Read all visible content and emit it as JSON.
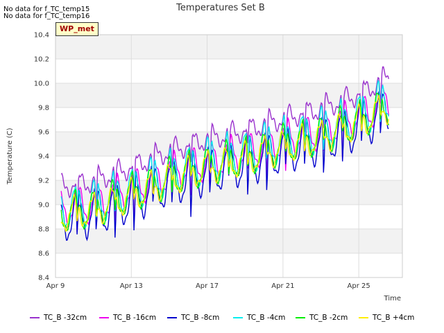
{
  "notices": [
    "No data for f_TC_temp15",
    "No data for f_TC_temp16"
  ],
  "badge": "WP_met",
  "chart_data": {
    "type": "line",
    "title": "Temperatures Set B",
    "xlabel": "Time",
    "ylabel": "Temperature (C)",
    "ylim": [
      8.4,
      10.4
    ],
    "yticks": [
      "8.4",
      "8.6",
      "8.8",
      "9.0",
      "9.2",
      "9.4",
      "9.6",
      "9.8",
      "10.0",
      "10.2",
      "10.4"
    ],
    "xlim": [
      0,
      18.3
    ],
    "xticks": [
      {
        "label": "Apr 9",
        "day": 0
      },
      {
        "label": "Apr 13",
        "day": 4
      },
      {
        "label": "Apr 17",
        "day": 8
      },
      {
        "label": "Apr 21",
        "day": 12
      },
      {
        "label": "Apr 25",
        "day": 16
      }
    ],
    "grid": true,
    "legend_position": "bottom",
    "series": [
      {
        "name": "TC_B -32cm",
        "color": "#9a32cd",
        "offset": 0.2,
        "amp": 0.08,
        "dips": 0.35
      },
      {
        "name": "TC_B -16cm",
        "color": "#ee00ee",
        "offset": 0.02,
        "amp": 0.15,
        "dips": 0.45
      },
      {
        "name": "TC_B -8cm",
        "color": "#0000cd",
        "offset": -0.05,
        "amp": 0.2,
        "dips": 0.55
      },
      {
        "name": "TC_B -4cm",
        "color": "#00eeee",
        "offset": 0.03,
        "amp": 0.18,
        "dips": 0.35
      },
      {
        "name": "TC_B -2cm",
        "color": "#00ee00",
        "offset": -0.02,
        "amp": 0.15,
        "dips": 0.25
      },
      {
        "name": "TC_B +4cm",
        "color": "#ffee00",
        "offset": -0.04,
        "amp": 0.12,
        "dips": 0.15
      }
    ],
    "trend": [
      {
        "day": 0,
        "value": 8.95
      },
      {
        "day": 2,
        "value": 9.0
      },
      {
        "day": 4,
        "value": 9.12
      },
      {
        "day": 6,
        "value": 9.25
      },
      {
        "day": 8,
        "value": 9.35
      },
      {
        "day": 10,
        "value": 9.42
      },
      {
        "day": 12,
        "value": 9.52
      },
      {
        "day": 14,
        "value": 9.6
      },
      {
        "day": 16,
        "value": 9.72
      },
      {
        "day": 17.5,
        "value": 9.85
      }
    ]
  }
}
